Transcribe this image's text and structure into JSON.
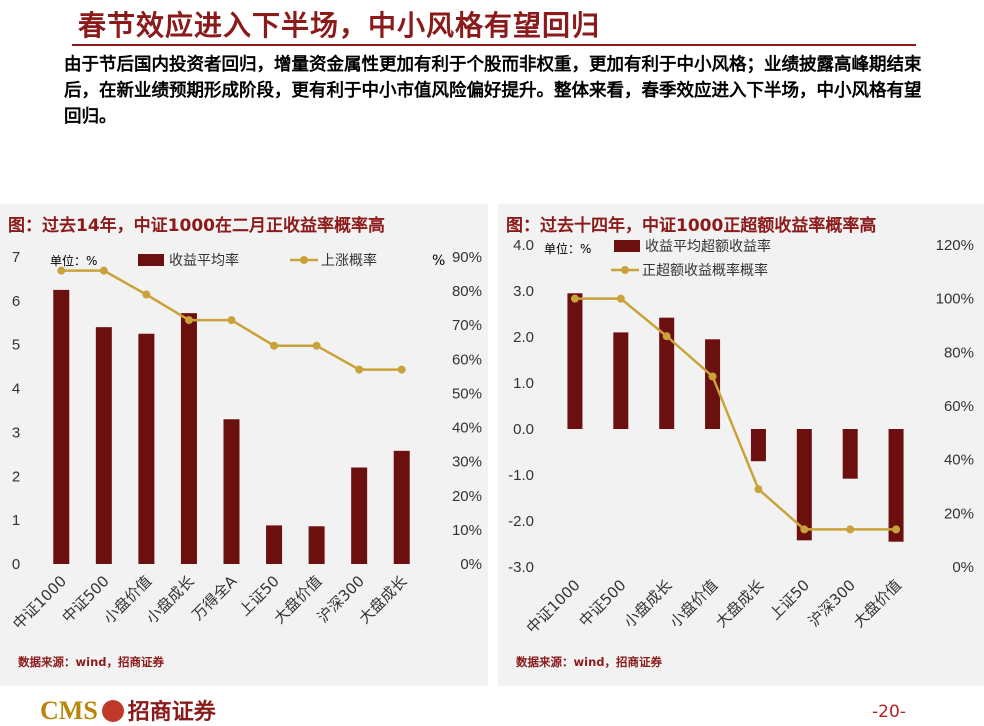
{
  "page": {
    "title": "春节效应进入下半场，中小风格有望回归",
    "body_text": "由于节后国内投资者回归，增量资金属性更加有利于个股而非权重，更加有利于中小风格；业绩披露高峰期结束后，在新业绩预期形成阶段，更有利于中小市值风险偏好提升。整体来看，春季效应进入下半场，中小风格有望回归。",
    "logo_text": "CMS",
    "logo_cn": "招商证券",
    "page_number": "-20-"
  },
  "colors": {
    "bar": "#6b0f0f",
    "line": "#c9a23a",
    "title": "#8b1a1a",
    "panel_bg": "#f2f2f2"
  },
  "chart_data": [
    {
      "type": "bar",
      "title": "图：过去14年，中证1000在二月正收益率概率高",
      "unit_label": "单位：%",
      "right_unit": "%",
      "source": "数据来源：wind，招商证券",
      "categories": [
        "中证1000",
        "中证500",
        "小盘价值",
        "小盘成长",
        "万得全A",
        "上证50",
        "大盘价值",
        "沪深300",
        "大盘成长"
      ],
      "series": [
        {
          "name": "收益平均率",
          "type": "bar",
          "axis": "left",
          "values": [
            6.25,
            5.4,
            5.25,
            5.72,
            3.3,
            0.88,
            0.86,
            2.2,
            2.58
          ]
        },
        {
          "name": "上涨概率",
          "type": "line",
          "axis": "right",
          "values": [
            86,
            86,
            79,
            71.5,
            71.5,
            64,
            64,
            57,
            57
          ]
        }
      ],
      "left_axis": {
        "min": 0,
        "max": 7,
        "ticks": [
          "0",
          "1",
          "2",
          "3",
          "4",
          "5",
          "6",
          "7"
        ]
      },
      "right_axis": {
        "min": 0,
        "max": 90,
        "ticks": [
          "0%",
          "10%",
          "20%",
          "30%",
          "40%",
          "50%",
          "60%",
          "70%",
          "80%",
          "90%"
        ]
      }
    },
    {
      "type": "bar",
      "title": "图：过去十四年，中证1000正超额收益率概率高",
      "unit_label": "单位：%",
      "source": "数据来源：wind，招商证券",
      "categories": [
        "中证1000",
        "中证500",
        "小盘成长",
        "小盘价值",
        "大盘成长",
        "上证50",
        "沪深300",
        "大盘价值"
      ],
      "series": [
        {
          "name": "收益平均超额收益率",
          "type": "bar",
          "axis": "left",
          "values": [
            2.95,
            2.1,
            2.42,
            1.95,
            -0.7,
            -2.42,
            -1.08,
            -2.45
          ]
        },
        {
          "name": "正超额收益概率概率",
          "type": "line",
          "axis": "right",
          "values": [
            100,
            100,
            86,
            71,
            29,
            14,
            14,
            14
          ]
        }
      ],
      "left_axis": {
        "min": -3,
        "max": 4,
        "ticks": [
          "-3.0",
          "-2.0",
          "-1.0",
          "0.0",
          "1.0",
          "2.0",
          "3.0",
          "4.0"
        ]
      },
      "right_axis": {
        "min": 0,
        "max": 120,
        "ticks": [
          "0%",
          "20%",
          "40%",
          "60%",
          "80%",
          "100%",
          "120%"
        ]
      }
    }
  ]
}
